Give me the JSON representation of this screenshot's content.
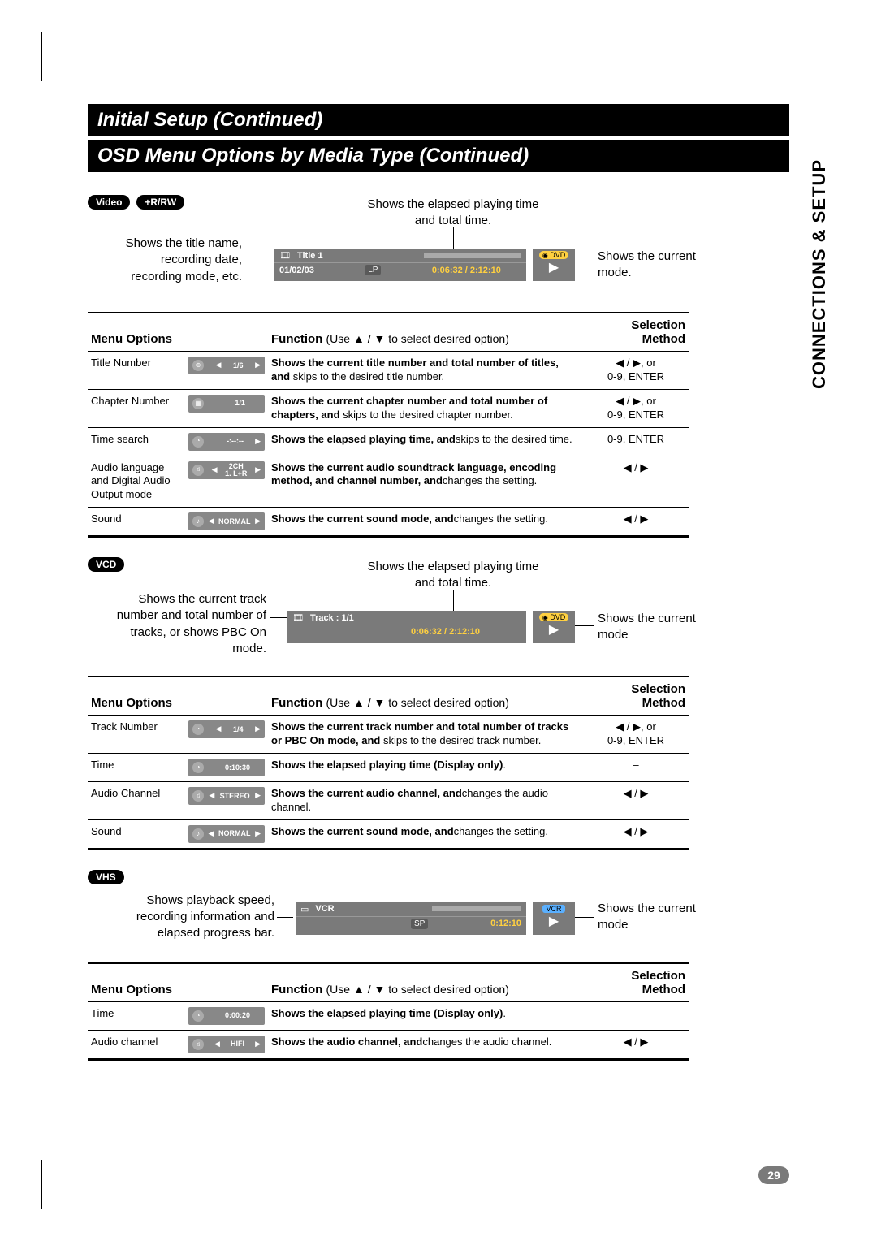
{
  "page": {
    "title1": "Initial Setup (Continued)",
    "title2": "OSD Menu Options by Media Type (Continued)",
    "side_tab": "CONNECTIONS & SETUP",
    "page_number": "29"
  },
  "symbols": {
    "up": "▲",
    "down": "▼",
    "left": "◀",
    "right": "▶",
    "play": "▶"
  },
  "headers": {
    "menu_options": "Menu Options",
    "function": "Function",
    "function_hint_prefix": "(Use ",
    "function_hint_suffix": " to select desired option)",
    "selection_method": "Selection Method"
  },
  "selection_strings": {
    "lr_or": "◀ / ▶, or",
    "zero9_enter": "0-9, ENTER",
    "lr": "◀ / ▶",
    "dash": "–"
  },
  "sec_video": {
    "badges": [
      "Video",
      "+R/RW"
    ],
    "label_left": "Shows the title name,\nrecording date,\nrecording mode, etc.",
    "label_top": "Shows the elapsed playing time\nand total time.",
    "label_right": "Shows the current\nmode.",
    "osd": {
      "title_label": "Title 1",
      "date": "01/02/03",
      "mode": "LP",
      "time": "0:06:32   /   2:12:10",
      "brand": "DVD"
    },
    "rows": [
      {
        "option": "Title Number",
        "mini": {
          "left": "◀",
          "val": "1/6",
          "right": "▶",
          "icon": "⊕"
        },
        "func_bold": "Shows the current title number and total number of titles, and ",
        "func_rest": "skips to the desired title number.",
        "sel": [
          "lr_or",
          "zero9_enter"
        ]
      },
      {
        "option": "Chapter Number",
        "mini": {
          "left": "",
          "val": "1/1",
          "right": "",
          "icon": "▦"
        },
        "func_bold": "Shows the current chapter number and total number of chapters, and ",
        "func_rest": "skips to the desired chapter number.",
        "sel": [
          "lr_or",
          "zero9_enter"
        ]
      },
      {
        "option": "Time search",
        "mini": {
          "left": "",
          "val": "-:--:--",
          "right": "▶",
          "icon": "◔"
        },
        "func_bold": "Shows the elapsed playing time, and",
        "func_rest": "skips to the desired time.",
        "sel": [
          "zero9_enter"
        ]
      },
      {
        "option": "Audio language\nand Digital Audio\nOutput mode",
        "mini": {
          "left": "◀",
          "val": "2CH\n1.  L+R",
          "right": "▶",
          "icon": "♫"
        },
        "func_bold": "Shows the current audio soundtrack language, encoding method, and channel number, and",
        "func_rest": "changes the setting.",
        "sel": [
          "lr"
        ]
      },
      {
        "option": "Sound",
        "mini": {
          "left": "◀",
          "val": "NORMAL",
          "right": "▶",
          "icon": "♪"
        },
        "func_bold": "Shows the current sound mode, and",
        "func_rest": "changes the setting.",
        "sel": [
          "lr"
        ]
      }
    ]
  },
  "sec_vcd": {
    "badges": [
      "VCD"
    ],
    "label_left": "Shows the current track\nnumber and total number of\ntracks, or shows PBC On\nmode.",
    "label_top": "Shows the elapsed playing time\nand total time.",
    "label_right": "Shows the current\nmode",
    "osd": {
      "track_label": "Track    :  1/1",
      "time": "0:06:32   /   2:12:10",
      "brand": "DVD"
    },
    "rows": [
      {
        "option": "Track Number",
        "mini": {
          "left": "◀",
          "val": "1/4",
          "right": "▶",
          "icon": "◔"
        },
        "func_bold": "Shows the current track number and total number of tracks or PBC On mode, and ",
        "func_rest": "skips to the desired track number.",
        "sel": [
          "lr_or",
          "zero9_enter"
        ]
      },
      {
        "option": "Time",
        "mini": {
          "left": "",
          "val": "0:10:30",
          "right": "",
          "icon": "◔"
        },
        "func_bold": "Shows the elapsed playing time (Display only)",
        "func_rest": ".",
        "sel": [
          "dash"
        ]
      },
      {
        "option": "Audio Channel",
        "mini": {
          "left": "◀",
          "val": "STEREO",
          "right": "▶",
          "icon": "♫"
        },
        "func_bold": "Shows the current audio channel, and",
        "func_rest": "changes the audio channel.",
        "sel": [
          "lr"
        ]
      },
      {
        "option": "Sound",
        "mini": {
          "left": "◀",
          "val": "NORMAL",
          "right": "▶",
          "icon": "♪"
        },
        "func_bold": "Shows the current sound mode, and",
        "func_rest": "changes the setting.",
        "sel": [
          "lr"
        ]
      }
    ]
  },
  "sec_vhs": {
    "badges": [
      "VHS"
    ],
    "label_left": "Shows playback speed,\nrecording information and\nelapsed progress bar.",
    "label_right": "Shows the current\nmode",
    "osd": {
      "brand": "VCR",
      "mode": "SP",
      "time": "0:12:10",
      "brand2": "VCR"
    },
    "rows": [
      {
        "option": "Time",
        "mini": {
          "left": "",
          "val": "0:00:20",
          "right": "",
          "icon": "◔"
        },
        "func_bold": "Shows the elapsed playing time (Display only)",
        "func_rest": ".",
        "sel": [
          "dash"
        ]
      },
      {
        "option": "Audio channel",
        "mini": {
          "left": "◀",
          "val": "HIFI",
          "right": "▶",
          "icon": "♫"
        },
        "func_bold": "Shows the audio channel, and",
        "func_rest": "changes the audio channel.",
        "sel": [
          "lr"
        ]
      }
    ]
  },
  "colors": {
    "osd_bg": "#7a7a7a",
    "osd_pill": "#5a5a5a",
    "text": "#000000",
    "title_bg": "#000000"
  }
}
